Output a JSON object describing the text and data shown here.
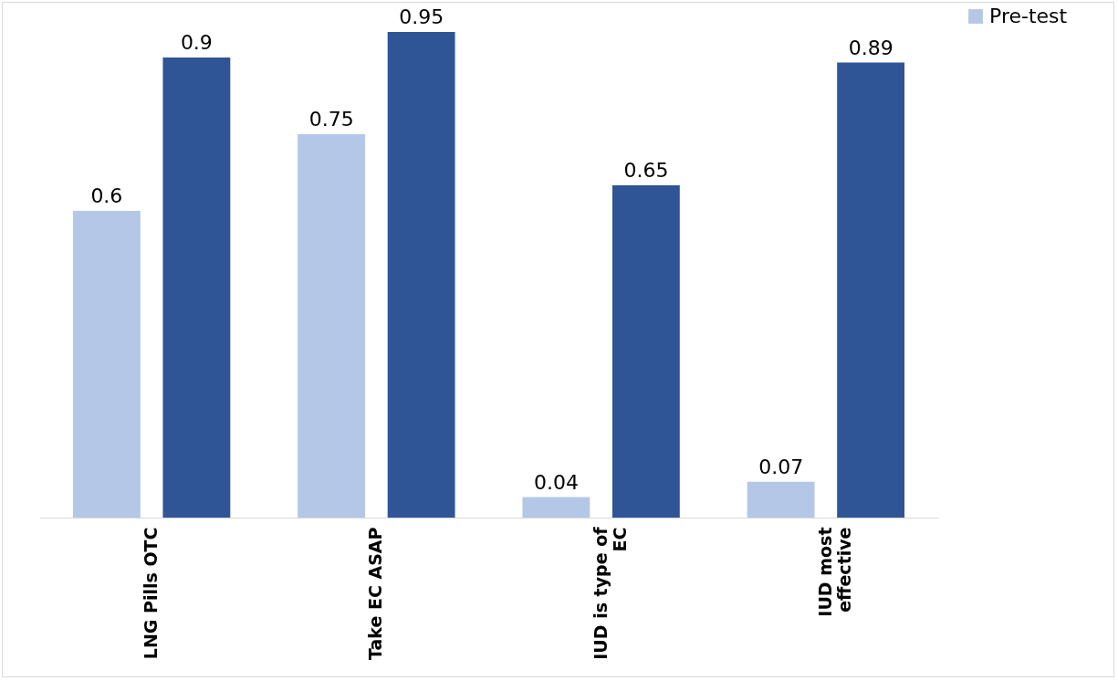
{
  "chart_data": {
    "type": "bar",
    "categories": [
      "LNG Pills OTC",
      "Take EC ASAP",
      "IUD is type of EC",
      "IUD most effective"
    ],
    "series": [
      {
        "name": "Pre-test",
        "color": "#b4c7e7",
        "values": [
          0.6,
          0.75,
          0.04,
          0.07
        ]
      },
      {
        "color": "#2f5597",
        "values": [
          0.9,
          0.95,
          0.65,
          0.89
        ]
      }
    ],
    "data_labels": true,
    "legend": "right"
  }
}
